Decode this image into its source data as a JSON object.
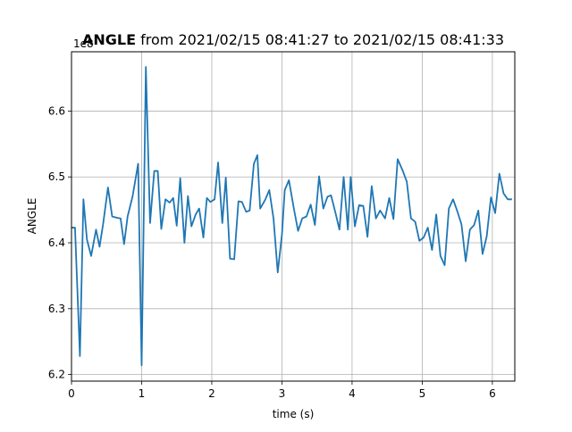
{
  "chart_data": {
    "type": "line",
    "title": {
      "bold": "ANGLE",
      "rest": " from 2021/02/15 08:41:27 to 2021/02/15 08:41:33"
    },
    "offset_label": "1e8",
    "xlabel": "time (s)",
    "ylabel": "ANGLE",
    "xlim": [
      0,
      6.32
    ],
    "ylim": [
      6.19,
      6.69
    ],
    "xticks": [
      0,
      1,
      2,
      3,
      4,
      5,
      6
    ],
    "xtick_labels": [
      "0",
      "1",
      "2",
      "3",
      "4",
      "5",
      "6"
    ],
    "yticks": [
      6.2,
      6.3,
      6.4,
      6.5,
      6.6
    ],
    "ytick_labels": [
      "6.2",
      "6.3",
      "6.4",
      "6.5",
      "6.6"
    ],
    "grid": true,
    "line_color": "#1f77b4",
    "series": [
      {
        "x": [
          0,
          0.05,
          0.12,
          0.17,
          0.22,
          0.28,
          0.35,
          0.4,
          0.45,
          0.52,
          0.58,
          0.65,
          0.7,
          0.75,
          0.8,
          0.87,
          0.95,
          1.0,
          1.06,
          1.12,
          1.18,
          1.23,
          1.28,
          1.34,
          1.4,
          1.45,
          1.5,
          1.55,
          1.61,
          1.66,
          1.71,
          1.77,
          1.82,
          1.88,
          1.93,
          1.98,
          2.04,
          2.09,
          2.15,
          2.2,
          2.26,
          2.32,
          2.38,
          2.43,
          2.49,
          2.54,
          2.6,
          2.65,
          2.69,
          2.76,
          2.82,
          2.88,
          2.94,
          3.0,
          3.04,
          3.1,
          3.17,
          3.23,
          3.29,
          3.35,
          3.41,
          3.47,
          3.53,
          3.59,
          3.65,
          3.7,
          3.76,
          3.82,
          3.88,
          3.94,
          3.98,
          4.04,
          4.1,
          4.16,
          4.22,
          4.28,
          4.34,
          4.4,
          4.47,
          4.53,
          4.59,
          4.65,
          4.72,
          4.78,
          4.84,
          4.9,
          4.96,
          5.02,
          5.08,
          5.14,
          5.2,
          5.26,
          5.32,
          5.38,
          5.44,
          5.5,
          5.56,
          5.62,
          5.68,
          5.74,
          5.8,
          5.86,
          5.92,
          5.98,
          6.04,
          6.1,
          6.16,
          6.22,
          6.28
        ],
        "y": [
          6.423,
          6.423,
          6.228,
          6.466,
          6.405,
          6.38,
          6.42,
          6.394,
          6.428,
          6.484,
          6.44,
          6.438,
          6.437,
          6.398,
          6.44,
          6.47,
          6.52,
          6.214,
          6.667,
          6.43,
          6.509,
          6.509,
          6.421,
          6.466,
          6.461,
          6.468,
          6.426,
          6.498,
          6.4,
          6.471,
          6.425,
          6.443,
          6.452,
          6.408,
          6.468,
          6.462,
          6.466,
          6.522,
          6.43,
          6.499,
          6.376,
          6.375,
          6.463,
          6.462,
          6.447,
          6.449,
          6.52,
          6.533,
          6.452,
          6.465,
          6.48,
          6.437,
          6.355,
          6.412,
          6.48,
          6.495,
          6.452,
          6.418,
          6.437,
          6.44,
          6.458,
          6.427,
          6.501,
          6.452,
          6.47,
          6.472,
          6.447,
          6.42,
          6.5,
          6.42,
          6.5,
          6.425,
          6.457,
          6.456,
          6.409,
          6.486,
          6.437,
          6.449,
          6.437,
          6.468,
          6.436,
          6.527,
          6.51,
          6.493,
          6.437,
          6.432,
          6.403,
          6.408,
          6.423,
          6.389,
          6.443,
          6.38,
          6.366,
          6.452,
          6.466,
          6.448,
          6.428,
          6.372,
          6.42,
          6.427,
          6.449,
          6.383,
          6.41,
          6.469,
          6.445,
          6.505,
          6.475,
          6.466,
          6.466
        ]
      }
    ]
  }
}
